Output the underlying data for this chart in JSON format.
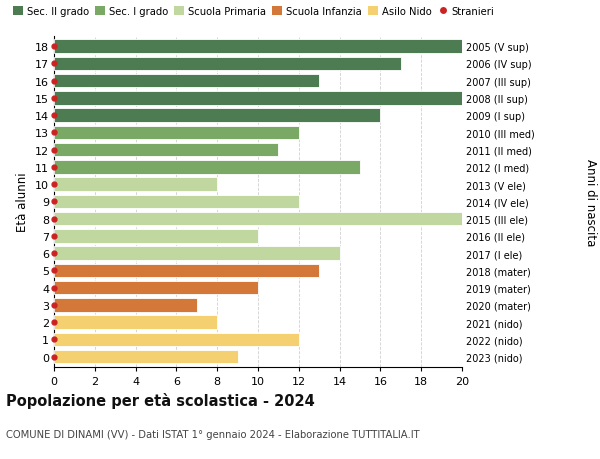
{
  "ages": [
    18,
    17,
    16,
    15,
    14,
    13,
    12,
    11,
    10,
    9,
    8,
    7,
    6,
    5,
    4,
    3,
    2,
    1,
    0
  ],
  "right_labels": [
    "2005 (V sup)",
    "2006 (IV sup)",
    "2007 (III sup)",
    "2008 (II sup)",
    "2009 (I sup)",
    "2010 (III med)",
    "2011 (II med)",
    "2012 (I med)",
    "2013 (V ele)",
    "2014 (IV ele)",
    "2015 (III ele)",
    "2016 (II ele)",
    "2017 (I ele)",
    "2018 (mater)",
    "2019 (mater)",
    "2020 (mater)",
    "2021 (nido)",
    "2022 (nido)",
    "2023 (nido)"
  ],
  "values": [
    20,
    17,
    13,
    20,
    16,
    12,
    11,
    15,
    8,
    12,
    20,
    10,
    14,
    13,
    10,
    7,
    8,
    12,
    9
  ],
  "colors": [
    "#4d7c52",
    "#4d7c52",
    "#4d7c52",
    "#4d7c52",
    "#4d7c52",
    "#7aa865",
    "#7aa865",
    "#7aa865",
    "#c0d8a0",
    "#c0d8a0",
    "#c0d8a0",
    "#c0d8a0",
    "#c0d8a0",
    "#d4783a",
    "#d4783a",
    "#d4783a",
    "#f5d070",
    "#f5d070",
    "#f5d070"
  ],
  "legend_labels": [
    "Sec. II grado",
    "Sec. I grado",
    "Scuola Primaria",
    "Scuola Infanzia",
    "Asilo Nido",
    "Stranieri"
  ],
  "legend_colors": [
    "#4d7c52",
    "#7aa865",
    "#c0d8a0",
    "#d4783a",
    "#f5d070",
    "#cc2222"
  ],
  "ylabel_left": "Età alunni",
  "ylabel_right": "Anni di nascita",
  "title": "Popolazione per età scolastica - 2024",
  "subtitle": "COMUNE DI DINAMI (VV) - Dati ISTAT 1° gennaio 2024 - Elaborazione TUTTITALIA.IT",
  "xlim": [
    0,
    20
  ],
  "xticks": [
    0,
    2,
    4,
    6,
    8,
    10,
    12,
    14,
    16,
    18,
    20
  ],
  "dot_color": "#cc2222",
  "bar_height": 0.78,
  "bg_color": "#ffffff",
  "grid_color": "#d0d0d0"
}
